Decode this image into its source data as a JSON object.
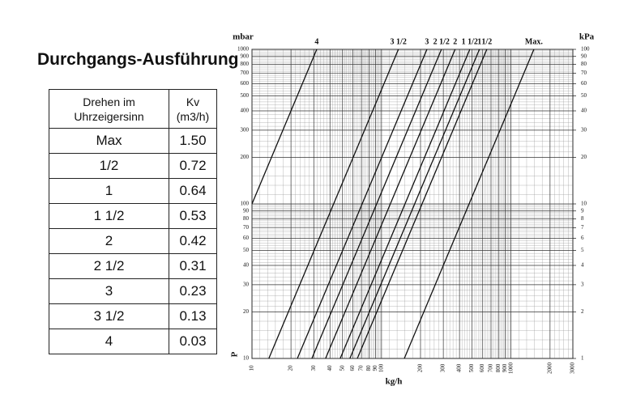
{
  "header": {
    "title": "Durchgangs-Ausführung"
  },
  "table": {
    "columns": [
      "Drehen im Uhrzeigersinn",
      "Kv (m3/h)"
    ],
    "rows": [
      [
        "Max",
        "1.50"
      ],
      [
        "1/2",
        "0.72"
      ],
      [
        "1",
        "0.64"
      ],
      [
        "1 1/2",
        "0.53"
      ],
      [
        "2",
        "0.42"
      ],
      [
        "2 1/2",
        "0.31"
      ],
      [
        "3",
        "0.23"
      ],
      [
        "3 1/2",
        "0.13"
      ],
      [
        "4",
        "0.03"
      ]
    ]
  },
  "chart_data": {
    "type": "line",
    "log_x": true,
    "log_y": true,
    "grid": true,
    "y_label": "mbar",
    "y2_label": "kPa",
    "x_label": "kg/h",
    "y_axis_symbol": "P",
    "xlim": [
      10,
      3000
    ],
    "ylim": [
      10,
      1000
    ],
    "y2lim": [
      1,
      100
    ],
    "xticks": [
      10,
      20,
      30,
      40,
      50,
      60,
      70,
      80,
      90,
      100,
      200,
      300,
      400,
      500,
      600,
      700,
      800,
      900,
      1000,
      2000,
      3000
    ],
    "yticks": [
      10,
      20,
      30,
      40,
      50,
      60,
      70,
      80,
      90,
      100,
      200,
      300,
      400,
      500,
      600,
      700,
      800,
      900,
      1000
    ],
    "y2ticks": [
      1,
      2,
      3,
      4,
      5,
      6,
      7,
      8,
      9,
      10,
      20,
      30,
      40,
      50,
      60,
      70,
      80,
      90,
      100
    ],
    "series": [
      {
        "name": "4",
        "color": "#111111",
        "x": [
          10,
          31.6
        ],
        "values": [
          100,
          1000
        ]
      },
      {
        "name": "3 1/2",
        "color": "#111111",
        "x": [
          13.5,
          135
        ],
        "values": [
          10,
          1000
        ]
      },
      {
        "name": "3",
        "color": "#111111",
        "x": [
          22.4,
          224
        ],
        "values": [
          10,
          1000
        ]
      },
      {
        "name": "2 1/2",
        "color": "#111111",
        "x": [
          29,
          290
        ],
        "values": [
          10,
          1000
        ]
      },
      {
        "name": "2",
        "color": "#111111",
        "x": [
          37,
          370
        ],
        "values": [
          10,
          1000
        ]
      },
      {
        "name": "1 1/2",
        "color": "#111111",
        "x": [
          48,
          480
        ],
        "values": [
          10,
          1000
        ]
      },
      {
        "name": "1",
        "color": "#111111",
        "x": [
          57,
          570
        ],
        "values": [
          10,
          1000
        ]
      },
      {
        "name": "1/2",
        "color": "#111111",
        "x": [
          65,
          650
        ],
        "values": [
          10,
          1000
        ]
      },
      {
        "name": "Max.",
        "color": "#111111",
        "x": [
          150,
          1500
        ],
        "values": [
          10,
          1000
        ]
      }
    ]
  }
}
